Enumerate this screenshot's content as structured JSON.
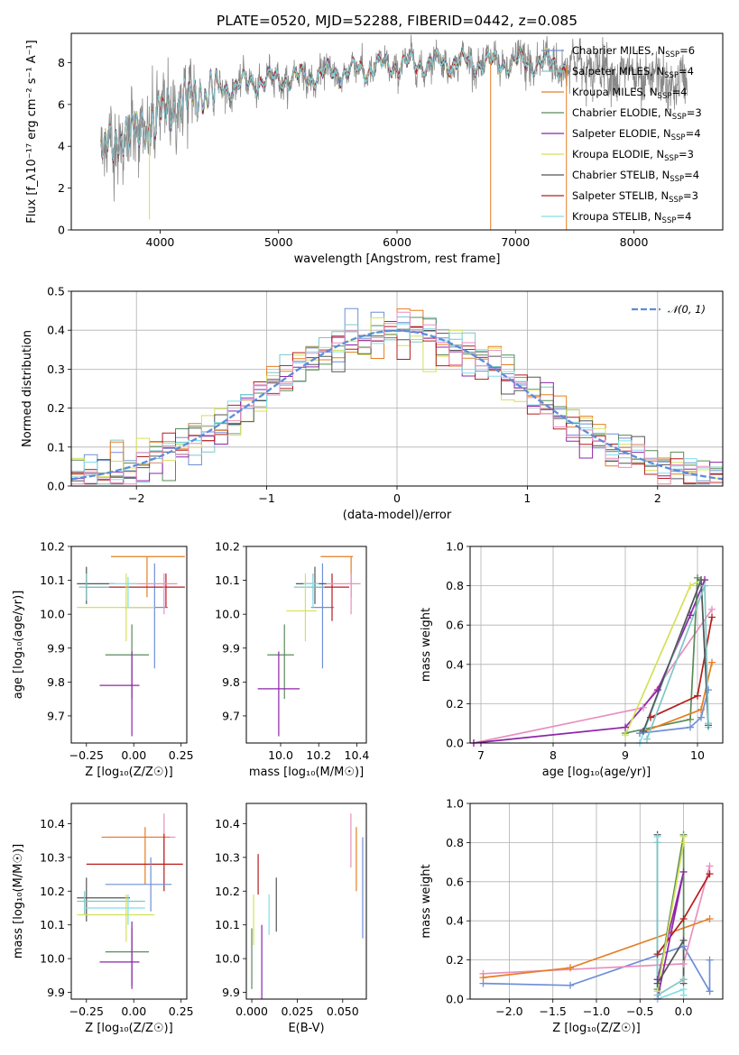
{
  "title": "PLATE=0520, MJD=52288, FIBERID=0442, z=0.085",
  "colors": {
    "chabrier_miles": "#6f8fd8",
    "salpeter_miles": "#7fc6c6",
    "kroupa_miles": "#e67e22",
    "chabrier_elodie": "#5a8a5a",
    "salpeter_elodie": "#8e24aa",
    "kroupa_elodie": "#d4e157",
    "chabrier_stelib": "#555555",
    "salpeter_stelib": "#b71c1c",
    "kroupa_stelib": "#80deea",
    "pink": "#e88fc0",
    "normal": "#5b8dd9",
    "data": "#888888"
  },
  "chart_data": [
    {
      "id": "spectrum",
      "type": "line",
      "xlabel": "wavelength [Angstrom, rest frame]",
      "ylabel": "Flux [f_λ10⁻¹⁷ erg cm⁻² s⁻¹ A⁻¹]",
      "xlim": [
        3250,
        8750
      ],
      "ylim": [
        0,
        9.4
      ],
      "xticks": [
        "4000",
        "5000",
        "6000",
        "7000",
        "8000"
      ],
      "yticks": [
        "0",
        "2",
        "4",
        "6",
        "8"
      ],
      "grid": false,
      "legend_position": "upper right",
      "continuum_anchors_x": [
        3500,
        3700,
        3900,
        4100,
        4400,
        4800,
        5200,
        5600,
        6000,
        6400,
        6800,
        7200,
        7600,
        8000,
        8400
      ],
      "continuum_anchors_y": [
        3.8,
        4.5,
        4.9,
        5.9,
        6.6,
        7.1,
        7.3,
        7.6,
        7.9,
        8.0,
        8.0,
        8.0,
        7.8,
        7.3,
        7.0
      ],
      "observed_range": [
        3500,
        8450
      ],
      "model_range": [
        3500,
        7430
      ],
      "notches": [
        {
          "x": 6790,
          "y_min": 0
        },
        {
          "x": 7430,
          "y_min": 0
        },
        {
          "x": 3910,
          "y_min": 0.5
        }
      ],
      "series": [
        {
          "name": "Chabrier MILES, N_SSP=6"
        },
        {
          "name": "Salpeter MILES, N_SSP=4"
        },
        {
          "name": "Kroupa MILES, N_SSP=4"
        },
        {
          "name": "Chabrier ELODIE, N_SSP=3"
        },
        {
          "name": "Salpeter ELODIE, N_SSP=4"
        },
        {
          "name": "Kroupa ELODIE, N_SSP=3"
        },
        {
          "name": "Chabrier STELIB, N_SSP=4"
        },
        {
          "name": "Salpeter STELIB, N_SSP=3"
        },
        {
          "name": "Kroupa STELIB, N_SSP=4"
        }
      ]
    },
    {
      "id": "residuals",
      "type": "line",
      "xlabel": "(data-model)/error",
      "ylabel": "Normed distribution",
      "xlim": [
        -2.5,
        2.5
      ],
      "ylim": [
        0,
        0.5
      ],
      "xticks": [
        "−2",
        "−1",
        "0",
        "1",
        "2"
      ],
      "yticks": [
        "0.0",
        "0.1",
        "0.2",
        "0.3",
        "0.4",
        "0.5"
      ],
      "grid": true,
      "legend_position": "upper right",
      "legend_label": "𝒩(0, 1)",
      "bin_width": 0.1,
      "normal": {
        "mu": 0,
        "sigma": 1
      }
    },
    {
      "id": "z_age",
      "type": "scatter",
      "xlabel": "Z [log₁₀(Z/Z☉)]",
      "ylabel": "age  [log₁₀(age/yr)]",
      "xlim": [
        -0.33,
        0.28
      ],
      "ylim": [
        9.62,
        10.2
      ],
      "xticks": [
        "−0.25",
        "0.00",
        "0.25"
      ],
      "yticks": [
        "9.7",
        "9.8",
        "9.9",
        "10.0",
        "10.1",
        "10.2"
      ],
      "points": [
        {
          "c": "kroupa_miles",
          "x": 0.07,
          "y": 10.17,
          "xlo": -0.12,
          "xhi": 0.27,
          "ylo": 10.05,
          "yhi": 10.17
        },
        {
          "c": "chabrier_miles",
          "x": 0.11,
          "y": 10.02,
          "xlo": -0.05,
          "xhi": 0.18,
          "ylo": 9.84,
          "yhi": 10.15
        },
        {
          "c": "salpeter_stelib",
          "x": 0.17,
          "y": 10.08,
          "xlo": -0.25,
          "xhi": 0.27,
          "ylo": 10.02,
          "yhi": 10.12
        },
        {
          "c": "pink",
          "x": 0.16,
          "y": 10.09,
          "xlo": -0.03,
          "xhi": 0.23,
          "ylo": 10.0,
          "yhi": 10.12
        },
        {
          "c": "chabrier_stelib",
          "x": -0.25,
          "y": 10.09,
          "xlo": -0.3,
          "xhi": -0.1,
          "ylo": 10.03,
          "yhi": 10.14
        },
        {
          "c": "salpeter_miles",
          "x": -0.25,
          "y": 10.08,
          "xlo": -0.29,
          "xhi": -0.13,
          "ylo": 10.04,
          "yhi": 10.12
        },
        {
          "c": "kroupa_elodie",
          "x": -0.04,
          "y": 10.02,
          "xlo": -0.3,
          "xhi": 0.11,
          "ylo": 9.92,
          "yhi": 10.12
        },
        {
          "c": "kroupa_stelib",
          "x": -0.03,
          "y": 10.09,
          "xlo": -0.13,
          "xhi": 0.02,
          "ylo": 10.02,
          "yhi": 10.11
        },
        {
          "c": "chabrier_elodie",
          "x": -0.01,
          "y": 9.88,
          "xlo": -0.15,
          "xhi": 0.08,
          "ylo": 9.75,
          "yhi": 9.97
        },
        {
          "c": "salpeter_elodie",
          "x": -0.01,
          "y": 9.79,
          "xlo": -0.18,
          "xhi": 0.03,
          "ylo": 9.64,
          "yhi": 9.89
        }
      ]
    },
    {
      "id": "mass_age",
      "type": "scatter",
      "xlabel": "mass [log₁₀(M/M☉)]",
      "ylabel": "",
      "xlim": [
        9.82,
        10.45
      ],
      "ylim": [
        9.62,
        10.2
      ],
      "xticks": [
        "10.0",
        "10.2",
        "10.4"
      ],
      "yticks": [
        "9.7",
        "9.8",
        "9.9",
        "10.0",
        "10.1",
        "10.2"
      ],
      "points": [
        {
          "c": "kroupa_miles",
          "x": 10.37,
          "y": 10.17,
          "xlo": 10.21,
          "xhi": 10.38,
          "ylo": 10.05,
          "yhi": 10.17
        },
        {
          "c": "chabrier_miles",
          "x": 10.22,
          "y": 10.02,
          "xlo": 10.16,
          "xhi": 10.28,
          "ylo": 9.84,
          "yhi": 10.15
        },
        {
          "c": "salpeter_stelib",
          "x": 10.27,
          "y": 10.08,
          "xlo": 10.16,
          "xhi": 10.36,
          "ylo": 9.98,
          "yhi": 10.12
        },
        {
          "c": "pink",
          "x": 10.37,
          "y": 10.09,
          "xlo": 10.24,
          "xhi": 10.42,
          "ylo": 10.0,
          "yhi": 10.12
        },
        {
          "c": "chabrier_stelib",
          "x": 10.18,
          "y": 10.09,
          "xlo": 10.08,
          "xhi": 10.24,
          "ylo": 10.03,
          "yhi": 10.14
        },
        {
          "c": "salpeter_miles",
          "x": 10.17,
          "y": 10.08,
          "xlo": 10.07,
          "xhi": 10.23,
          "ylo": 10.04,
          "yhi": 10.12
        },
        {
          "c": "kroupa_elodie",
          "x": 10.13,
          "y": 10.01,
          "xlo": 10.03,
          "xhi": 10.19,
          "ylo": 9.92,
          "yhi": 10.12
        },
        {
          "c": "kroupa_stelib",
          "x": 10.17,
          "y": 10.09,
          "xlo": 10.12,
          "xhi": 10.2,
          "ylo": 10.02,
          "yhi": 10.11
        },
        {
          "c": "chabrier_elodie",
          "x": 10.02,
          "y": 9.88,
          "xlo": 9.93,
          "xhi": 10.07,
          "ylo": 9.75,
          "yhi": 9.97
        },
        {
          "c": "salpeter_elodie",
          "x": 9.99,
          "y": 9.78,
          "xlo": 9.88,
          "xhi": 10.1,
          "ylo": 9.64,
          "yhi": 9.89
        }
      ]
    },
    {
      "id": "age_weight",
      "type": "line",
      "xlabel": "age  [log₁₀(age/yr)]",
      "ylabel": "mass weight",
      "xlim": [
        6.85,
        10.35
      ],
      "ylim": [
        0,
        1
      ],
      "xticks": [
        "7",
        "8",
        "9",
        "10"
      ],
      "yticks": [
        "0.0",
        "0.2",
        "0.4",
        "0.6",
        "0.8",
        "1.0"
      ],
      "grid": true,
      "series": [
        {
          "c": "pink",
          "x": [
            6.9,
            9.25,
            10.2
          ],
          "y": [
            0.0,
            0.18,
            0.68
          ]
        },
        {
          "c": "salpeter_elodie",
          "x": [
            6.9,
            9.0,
            9.45,
            9.9,
            10.1
          ],
          "y": [
            0.0,
            0.08,
            0.27,
            0.65,
            0.83
          ]
        },
        {
          "c": "chabrier_elodie",
          "x": [
            9.0,
            9.9,
            10.0
          ],
          "y": [
            0.05,
            0.12,
            0.84
          ]
        },
        {
          "c": "kroupa_elodie",
          "x": [
            9.0,
            9.9,
            10.05
          ],
          "y": [
            0.04,
            0.8,
            0.83
          ]
        },
        {
          "c": "salpeter_stelib",
          "x": [
            9.35,
            10.0,
            10.2
          ],
          "y": [
            0.13,
            0.24,
            0.64
          ]
        },
        {
          "c": "kroupa_miles",
          "x": [
            9.2,
            10.05,
            10.2
          ],
          "y": [
            0.05,
            0.17,
            0.41
          ]
        },
        {
          "c": "chabrier_miles",
          "x": [
            9.2,
            9.9,
            10.05,
            10.15
          ],
          "y": [
            0.05,
            0.08,
            0.13,
            0.27
          ]
        },
        {
          "c": "kroupa_stelib",
          "x": [
            9.2,
            10.05,
            10.15
          ],
          "y": [
            0.0,
            0.83,
            0.08
          ]
        },
        {
          "c": "chabrier_stelib",
          "x": [
            9.25,
            10.05,
            10.15
          ],
          "y": [
            0.06,
            0.83,
            0.09
          ]
        },
        {
          "c": "salpeter_miles",
          "x": [
            9.3,
            10.1,
            10.15
          ],
          "y": [
            0.02,
            0.8,
            0.1
          ]
        }
      ]
    },
    {
      "id": "z_mass",
      "type": "scatter",
      "xlabel": "Z [log₁₀(Z/Z☉)]",
      "ylabel": "mass [log₁₀(M/M☉)]",
      "xlim": [
        -0.33,
        0.28
      ],
      "ylim": [
        9.88,
        10.46
      ],
      "xticks": [
        "−0.25",
        "0.00",
        "0.25"
      ],
      "yticks": [
        "9.9",
        "10.0",
        "10.1",
        "10.2",
        "10.3",
        "10.4"
      ],
      "points": [
        {
          "c": "pink",
          "x": 0.16,
          "y": 10.36,
          "xlo": -0.14,
          "xhi": 0.22,
          "ylo": 10.28,
          "yhi": 10.43
        },
        {
          "c": "kroupa_miles",
          "x": 0.06,
          "y": 10.36,
          "xlo": -0.17,
          "xhi": 0.19,
          "ylo": 10.22,
          "yhi": 10.39
        },
        {
          "c": "salpeter_stelib",
          "x": 0.16,
          "y": 10.28,
          "xlo": -0.25,
          "xhi": 0.26,
          "ylo": 10.2,
          "yhi": 10.37
        },
        {
          "c": "chabrier_miles",
          "x": 0.09,
          "y": 10.22,
          "xlo": -0.15,
          "xhi": 0.2,
          "ylo": 10.14,
          "yhi": 10.3
        },
        {
          "c": "chabrier_stelib",
          "x": -0.25,
          "y": 10.18,
          "xlo": -0.3,
          "xhi": -0.02,
          "ylo": 10.11,
          "yhi": 10.24
        },
        {
          "c": "salpeter_miles",
          "x": -0.26,
          "y": 10.17,
          "xlo": -0.3,
          "xhi": 0.06,
          "ylo": 10.13,
          "yhi": 10.2
        },
        {
          "c": "kroupa_stelib",
          "x": -0.03,
          "y": 10.15,
          "xlo": -0.26,
          "xhi": 0.06,
          "ylo": 10.1,
          "yhi": 10.19
        },
        {
          "c": "kroupa_elodie",
          "x": -0.04,
          "y": 10.13,
          "xlo": -0.3,
          "xhi": 0.11,
          "ylo": 10.05,
          "yhi": 10.19
        },
        {
          "c": "chabrier_elodie",
          "x": -0.01,
          "y": 10.02,
          "xlo": -0.15,
          "xhi": 0.08,
          "ylo": 9.92,
          "yhi": 10.09
        },
        {
          "c": "salpeter_elodie",
          "x": -0.01,
          "y": 9.99,
          "xlo": -0.18,
          "xhi": 0.03,
          "ylo": 9.91,
          "yhi": 10.11
        }
      ]
    },
    {
      "id": "ebv_mass",
      "type": "scatter",
      "xlabel": "E(B-V)",
      "ylabel": "",
      "xlim": [
        -0.003,
        0.063
      ],
      "ylim": [
        9.88,
        10.46
      ],
      "xticks": [
        "0.000",
        "0.025",
        "0.050"
      ],
      "yticks": [
        "9.9",
        "10.0",
        "10.1",
        "10.2",
        "10.3",
        "10.4"
      ],
      "vlines": [
        {
          "c": "chabrier_elodie",
          "x": 0.0,
          "ylo": 9.91,
          "yhi": 10.09
        },
        {
          "c": "kroupa_elodie",
          "x": 0.001,
          "ylo": 10.04,
          "yhi": 10.19
        },
        {
          "c": "salpeter_stelib",
          "x": 0.0035,
          "ylo": 10.19,
          "yhi": 10.31
        },
        {
          "c": "salpeter_elodie",
          "x": 0.0055,
          "ylo": 9.88,
          "yhi": 10.1
        },
        {
          "c": "kroupa_stelib",
          "x": 0.0095,
          "ylo": 10.07,
          "yhi": 10.19
        },
        {
          "c": "chabrier_stelib",
          "x": 0.0135,
          "ylo": 10.08,
          "yhi": 10.24
        },
        {
          "c": "pink",
          "x": 0.0545,
          "ylo": 10.27,
          "yhi": 10.43
        },
        {
          "c": "kroupa_miles",
          "x": 0.0575,
          "ylo": 10.2,
          "yhi": 10.39
        },
        {
          "c": "chabrier_miles",
          "x": 0.061,
          "ylo": 10.06,
          "yhi": 10.36
        }
      ]
    },
    {
      "id": "z_weight",
      "type": "line",
      "xlabel": "Z [log₁₀(Z/Z☉)]",
      "ylabel": "mass weight",
      "xlim": [
        -2.45,
        0.45
      ],
      "ylim": [
        0,
        1
      ],
      "xticks": [
        "−2.0",
        "−1.5",
        "−1.0",
        "−0.5",
        "0.0"
      ],
      "yticks": [
        "0.0",
        "0.2",
        "0.4",
        "0.6",
        "0.8",
        "1.0"
      ],
      "grid": true,
      "series": [
        {
          "c": "chabrier_miles",
          "x": [
            -2.3,
            -1.3,
            0.0,
            0.3,
            0.3
          ],
          "y": [
            0.08,
            0.07,
            0.27,
            0.04,
            0.2
          ]
        },
        {
          "c": "pink",
          "x": [
            -2.3,
            0.0,
            0.3
          ],
          "y": [
            0.13,
            0.18,
            0.68
          ]
        },
        {
          "c": "kroupa_miles",
          "x": [
            -2.3,
            -1.3,
            0.3
          ],
          "y": [
            0.11,
            0.16,
            0.41
          ]
        },
        {
          "c": "salpeter_stelib",
          "x": [
            -0.3,
            0.0,
            0.3
          ],
          "y": [
            0.23,
            0.41,
            0.64
          ]
        },
        {
          "c": "salpeter_elodie",
          "x": [
            -0.3,
            0.0,
            -0.3
          ],
          "y": [
            0.1,
            0.65,
            0.0
          ]
        },
        {
          "c": "chabrier_elodie",
          "x": [
            -0.3,
            0.0,
            0.0
          ],
          "y": [
            0.05,
            0.84,
            0.1
          ]
        },
        {
          "c": "kroupa_elodie",
          "x": [
            -0.3,
            0.0,
            0.0
          ],
          "y": [
            0.04,
            0.8,
            0.83
          ]
        },
        {
          "c": "chabrier_stelib",
          "x": [
            -0.3,
            -0.3,
            0.0,
            0.0
          ],
          "y": [
            0.84,
            0.08,
            0.3,
            0.08
          ]
        },
        {
          "c": "kroupa_stelib",
          "x": [
            -0.3,
            -0.3,
            0.0,
            0.0
          ],
          "y": [
            0.83,
            0.0,
            0.05,
            0.02
          ]
        },
        {
          "c": "salpeter_miles",
          "x": [
            -0.3,
            -0.3,
            0.0
          ],
          "y": [
            0.8,
            0.02,
            0.1
          ]
        }
      ]
    }
  ]
}
